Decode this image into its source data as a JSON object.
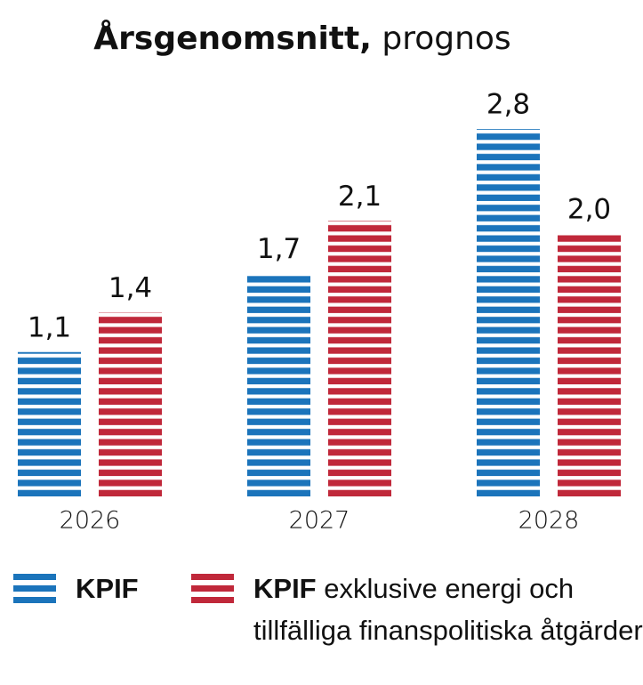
{
  "chart_data": {
    "type": "bar",
    "title": [
      "Årsgenomsnitt,",
      "prognos"
    ],
    "categories": [
      "2026",
      "2027",
      "2028"
    ],
    "series": [
      {
        "name": "KPIF",
        "color": "#1b74bb",
        "values": [
          1.1,
          1.7,
          2.8
        ],
        "value_labels": [
          "1,1",
          "1,7",
          "2,8"
        ]
      },
      {
        "name": "KPIF exklusive energi och tillfälliga finanspolitiska åtgärder",
        "color": "#c0283a",
        "values": [
          1.4,
          2.1,
          2.0
        ],
        "value_labels": [
          "1,4",
          "2,1",
          "2,0"
        ]
      }
    ],
    "ylim": [
      0,
      3
    ]
  }
}
